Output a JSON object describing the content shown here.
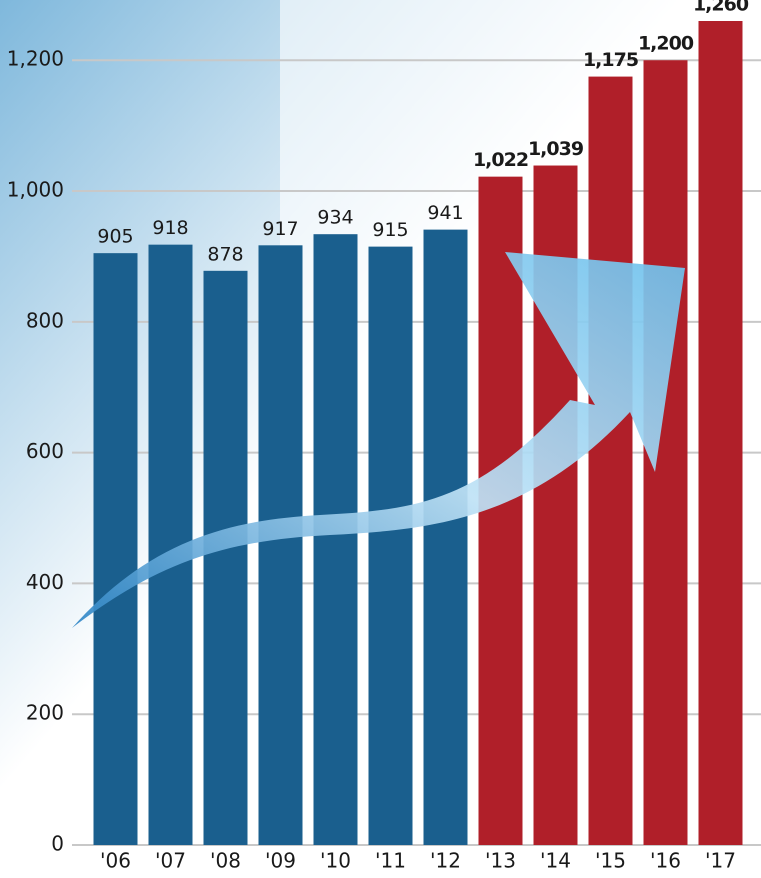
{
  "chart_data": {
    "type": "bar",
    "categories": [
      "'06",
      "'07",
      "'08",
      "'09",
      "'10",
      "'11",
      "'12",
      "'13",
      "'14",
      "'15",
      "'16",
      "'17"
    ],
    "values": [
      905,
      918,
      878,
      917,
      934,
      915,
      941,
      1022,
      1039,
      1175,
      1200,
      1260
    ],
    "value_labels": [
      "905",
      "918",
      "878",
      "917",
      "934",
      "915",
      "941",
      "1,022",
      "1,039",
      "1,175",
      "1,200",
      "1,260"
    ],
    "colors": [
      "#1a5f8e",
      "#1a5f8e",
      "#1a5f8e",
      "#1a5f8e",
      "#1a5f8e",
      "#1a5f8e",
      "#1a5f8e",
      "#b01f29",
      "#b01f29",
      "#b01f29",
      "#b01f29",
      "#b01f29"
    ],
    "ylim": [
      0,
      1260
    ],
    "yticks": [
      0,
      200,
      400,
      600,
      800,
      {
        "value": 1000,
        "label": "1,000"
      },
      {
        "value": 1200,
        "label": "1,200"
      }
    ],
    "grid": true
  }
}
